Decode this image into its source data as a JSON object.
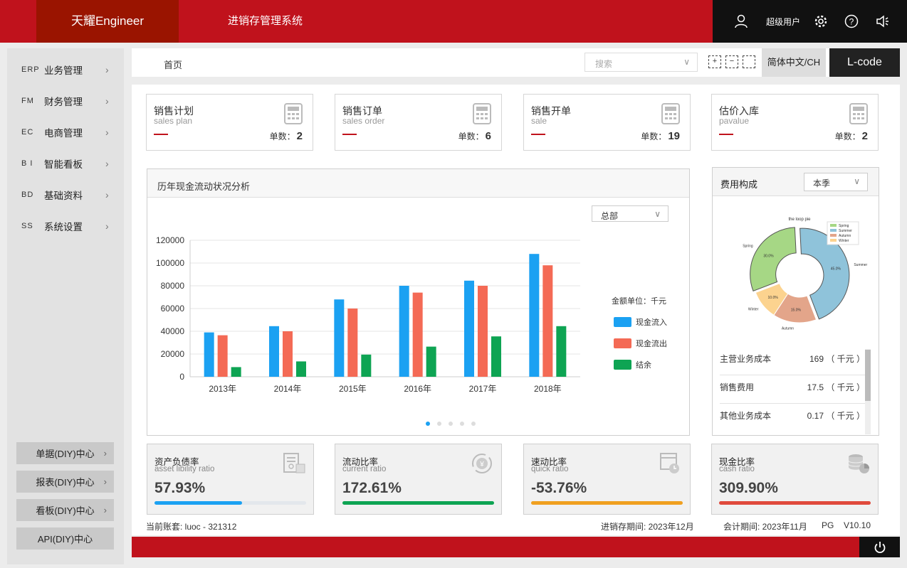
{
  "header": {
    "brand": "天耀Engineer",
    "system_title": "进销存管理系统",
    "username": "超级用户",
    "icons": [
      "user-icon",
      "gear-icon",
      "help-icon",
      "speaker-icon"
    ]
  },
  "sidebar": {
    "items": [
      {
        "code": "ERP",
        "label": "业务管理"
      },
      {
        "code": "FM",
        "label": "财务管理"
      },
      {
        "code": "EC",
        "label": "电商管理"
      },
      {
        "code": "B I",
        "label": "智能看板"
      },
      {
        "code": "BD",
        "label": "基础资料"
      },
      {
        "code": "SS",
        "label": "系统设置"
      }
    ],
    "diy": [
      "单据(DIY)中心",
      "报表(DIY)中心",
      "看板(DIY)中心",
      "API(DIY)中心"
    ]
  },
  "toolbar": {
    "breadcrumb": "首页",
    "search_placeholder": "搜索",
    "language": "简体中文/CH",
    "lcode": "L-code"
  },
  "cards": [
    {
      "title": "销售计划",
      "subtitle": "sales plan",
      "count_label": "单数：",
      "count": "2"
    },
    {
      "title": "销售订单",
      "subtitle": "sales order",
      "count_label": "单数：",
      "count": "6"
    },
    {
      "title": "销售开单",
      "subtitle": "sale",
      "count_label": "单数：",
      "count": "19"
    },
    {
      "title": "估价入库",
      "subtitle": "pavalue",
      "count_label": "单数：",
      "count": "2"
    }
  ],
  "cashflow": {
    "title": "历年现金流动状况分析",
    "filter": "总部",
    "unit_label": "金额单位：千元"
  },
  "chart_data": [
    {
      "type": "bar",
      "categories": [
        "2013年",
        "2014年",
        "2015年",
        "2016年",
        "2017年",
        "2018年"
      ],
      "series": [
        {
          "name": "现金流入",
          "color": "#1ba1f2",
          "values": [
            39000,
            44500,
            68000,
            80000,
            84500,
            108000
          ]
        },
        {
          "name": "现金流出",
          "color": "#f46a55",
          "values": [
            36500,
            40000,
            60000,
            74000,
            80000,
            98000
          ]
        },
        {
          "name": "结余",
          "color": "#0ea453",
          "values": [
            8500,
            13500,
            19500,
            26500,
            35500,
            44500
          ]
        }
      ],
      "yticks": [
        "0",
        "20000",
        "40000",
        "60000",
        "80000",
        "100000",
        "120000"
      ],
      "ylim": [
        0,
        120000
      ],
      "grid": true,
      "legend": "right"
    },
    {
      "type": "pie",
      "title": "the loop pie",
      "categories": [
        "Spring",
        "Summer",
        "Autumn",
        "Winter"
      ],
      "values": [
        30.0,
        45.0,
        15.0,
        10.0
      ],
      "labels": [
        "30.0%",
        "45.0%",
        "15.0%",
        "10.0%"
      ],
      "colors": [
        "#a6d785",
        "#8fc3da",
        "#e3a58a",
        "#fcd38f"
      ],
      "legend": "top-right"
    }
  ],
  "cost": {
    "title": "费用构成",
    "period": "本季",
    "rows": [
      {
        "name": "主营业务成本",
        "value": "169 （ 千元 ）"
      },
      {
        "name": "销售费用",
        "value": "17.5 （ 千元 ）"
      },
      {
        "name": "其他业务成本",
        "value": "0.17 （ 千元 ）"
      }
    ]
  },
  "ratios": [
    {
      "title": "资产负债率",
      "subtitle": "asset libility ratio",
      "value": "57.93%",
      "fill": 0.5793,
      "color": "#1ba1f2"
    },
    {
      "title": "流动比率",
      "subtitle": "current ratio",
      "value": "172.61%",
      "fill": 1.0,
      "color": "#0ea453"
    },
    {
      "title": "速动比率",
      "subtitle": "quick ratio",
      "value": "-53.76%",
      "fill": 1.0,
      "color": "#f0a020"
    },
    {
      "title": "现金比率",
      "subtitle": "cash ratio",
      "value": "309.90%",
      "fill": 1.0,
      "color": "#e04a3c"
    }
  ],
  "footer": {
    "account": "当前账套: luoc - 321312",
    "inv_period": "进销存期间: 2023年12月",
    "acc_period": "会计期间: 2023年11月",
    "db": "PG",
    "version": "V10.10"
  }
}
